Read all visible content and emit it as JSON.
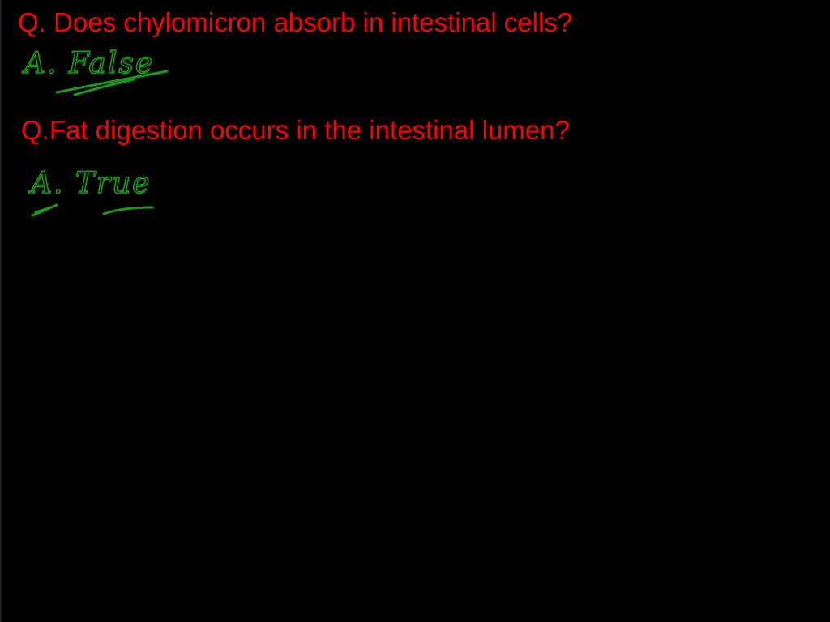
{
  "questions": [
    {
      "question": "Q. Does chylomicron absorb in intestinal cells?",
      "answer": "A. False"
    },
    {
      "question": "Q.Fat digestion occurs in the intestinal lumen?",
      "answer": "A. True"
    }
  ]
}
